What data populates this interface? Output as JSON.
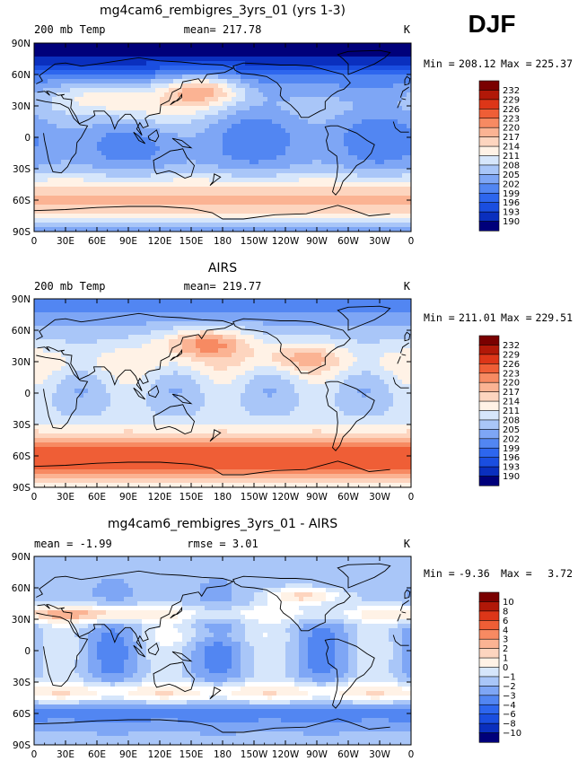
{
  "season": "DJF",
  "lon_ticks": [
    "0",
    "30E",
    "60E",
    "90E",
    "120E",
    "150E",
    "180",
    "150W",
    "120W",
    "90W",
    "60W",
    "30W",
    "0"
  ],
  "lat_ticks": [
    "90N",
    "60N",
    "30N",
    "0",
    "30S",
    "60S",
    "90S"
  ],
  "colors": {
    "mean_scale": [
      "#00007a",
      "#0a2fbe",
      "#1a4ee0",
      "#2d66ee",
      "#5286f2",
      "#7ea6f5",
      "#a9c6f8",
      "#d6e6fb",
      "#fff2e6",
      "#fdd5bf",
      "#fbb393",
      "#f78a62",
      "#ef5e36",
      "#dd3618",
      "#b11808",
      "#7a0000"
    ],
    "diff_scale": [
      "#00007a",
      "#0a2fbe",
      "#1a4ee0",
      "#2d66ee",
      "#5286f2",
      "#7ea6f5",
      "#a9c6f8",
      "#d6e6fb",
      "#ffffff",
      "#fff2e6",
      "#fdd5bf",
      "#fbb393",
      "#f78a62",
      "#ef5e36",
      "#dd3618",
      "#b11808",
      "#7a0000"
    ]
  },
  "chart_data": [
    {
      "type": "heatmap",
      "title": "mg4cam6_rembigres_3yrs_01 (yrs 1-3)",
      "left_label": "200 mb Temp",
      "center_label": "mean= 217.78",
      "right_label": "K",
      "stats": {
        "min_label": "Min =",
        "min": "208.12",
        "max_label": "Max =",
        "max": "225.37"
      },
      "levels": [
        "232",
        "229",
        "226",
        "223",
        "220",
        "217",
        "214",
        "211",
        "208",
        "205",
        "202",
        "199",
        "196",
        "193",
        "190"
      ],
      "xlim": [
        0,
        360
      ],
      "ylim": [
        -90,
        90
      ]
    },
    {
      "type": "heatmap",
      "title": "AIRS",
      "left_label": "200 mb Temp",
      "center_label": "mean= 219.77",
      "right_label": "K",
      "stats": {
        "min_label": "Min =",
        "min": "211.01",
        "max_label": "Max =",
        "max": "229.51"
      },
      "levels": [
        "232",
        "229",
        "226",
        "223",
        "220",
        "217",
        "214",
        "211",
        "208",
        "205",
        "202",
        "199",
        "196",
        "193",
        "190"
      ],
      "xlim": [
        0,
        360
      ],
      "ylim": [
        -90,
        90
      ]
    },
    {
      "type": "heatmap",
      "title": "mg4cam6_rembigres_3yrs_01 - AIRS",
      "left_label": "mean =   -1.99",
      "center_label": "rmse =     3.01",
      "right_label": "K",
      "stats": {
        "min_label": "Min =",
        "min": "-9.36",
        "max_label": "Max =",
        "max": "3.72"
      },
      "levels": [
        "10",
        "8",
        "6",
        "4",
        "3",
        "2",
        "1",
        "0",
        "−1",
        "−2",
        "−3",
        "−4",
        "−6",
        "−8",
        "−10"
      ],
      "xlim": [
        0,
        360
      ],
      "ylim": [
        -90,
        90
      ]
    }
  ]
}
